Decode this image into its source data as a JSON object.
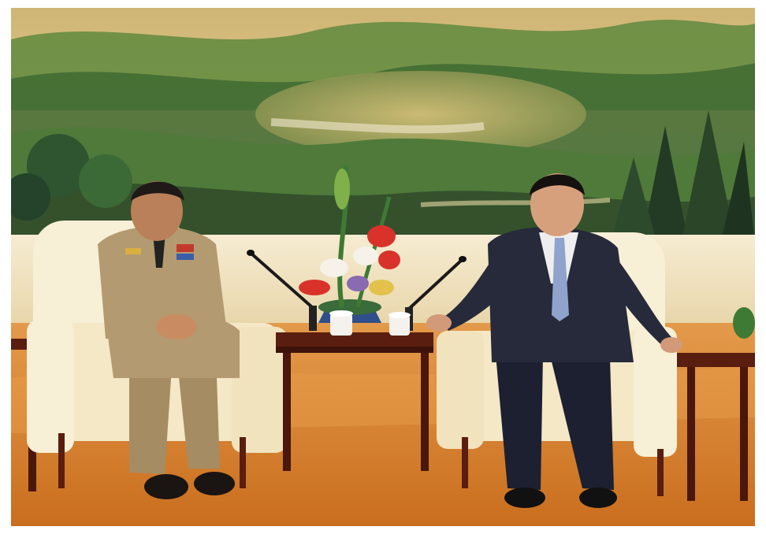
{
  "image": {
    "kind": "photograph",
    "scene": "meeting-room",
    "colors": {
      "mural_sky": "#e2c98a",
      "mural_green": "#4f7a3a",
      "mural_dark": "#2f4a2a",
      "wall": "#f3e6c8",
      "floor": "#d9842e",
      "carpet_light": "#e89c48",
      "chair": "#f7efd6",
      "table_wood": "#5a1e10",
      "uniform": "#b39a70",
      "suit": "#262a3a",
      "tie": "#8fa3cc",
      "flower_red": "#d8322a",
      "flower_white": "#f6f2ea"
    },
    "icons": [
      "microphone-icon",
      "microphone-icon",
      "tea-cup-icon",
      "tea-cup-icon",
      "flower-arrangement-icon"
    ]
  }
}
